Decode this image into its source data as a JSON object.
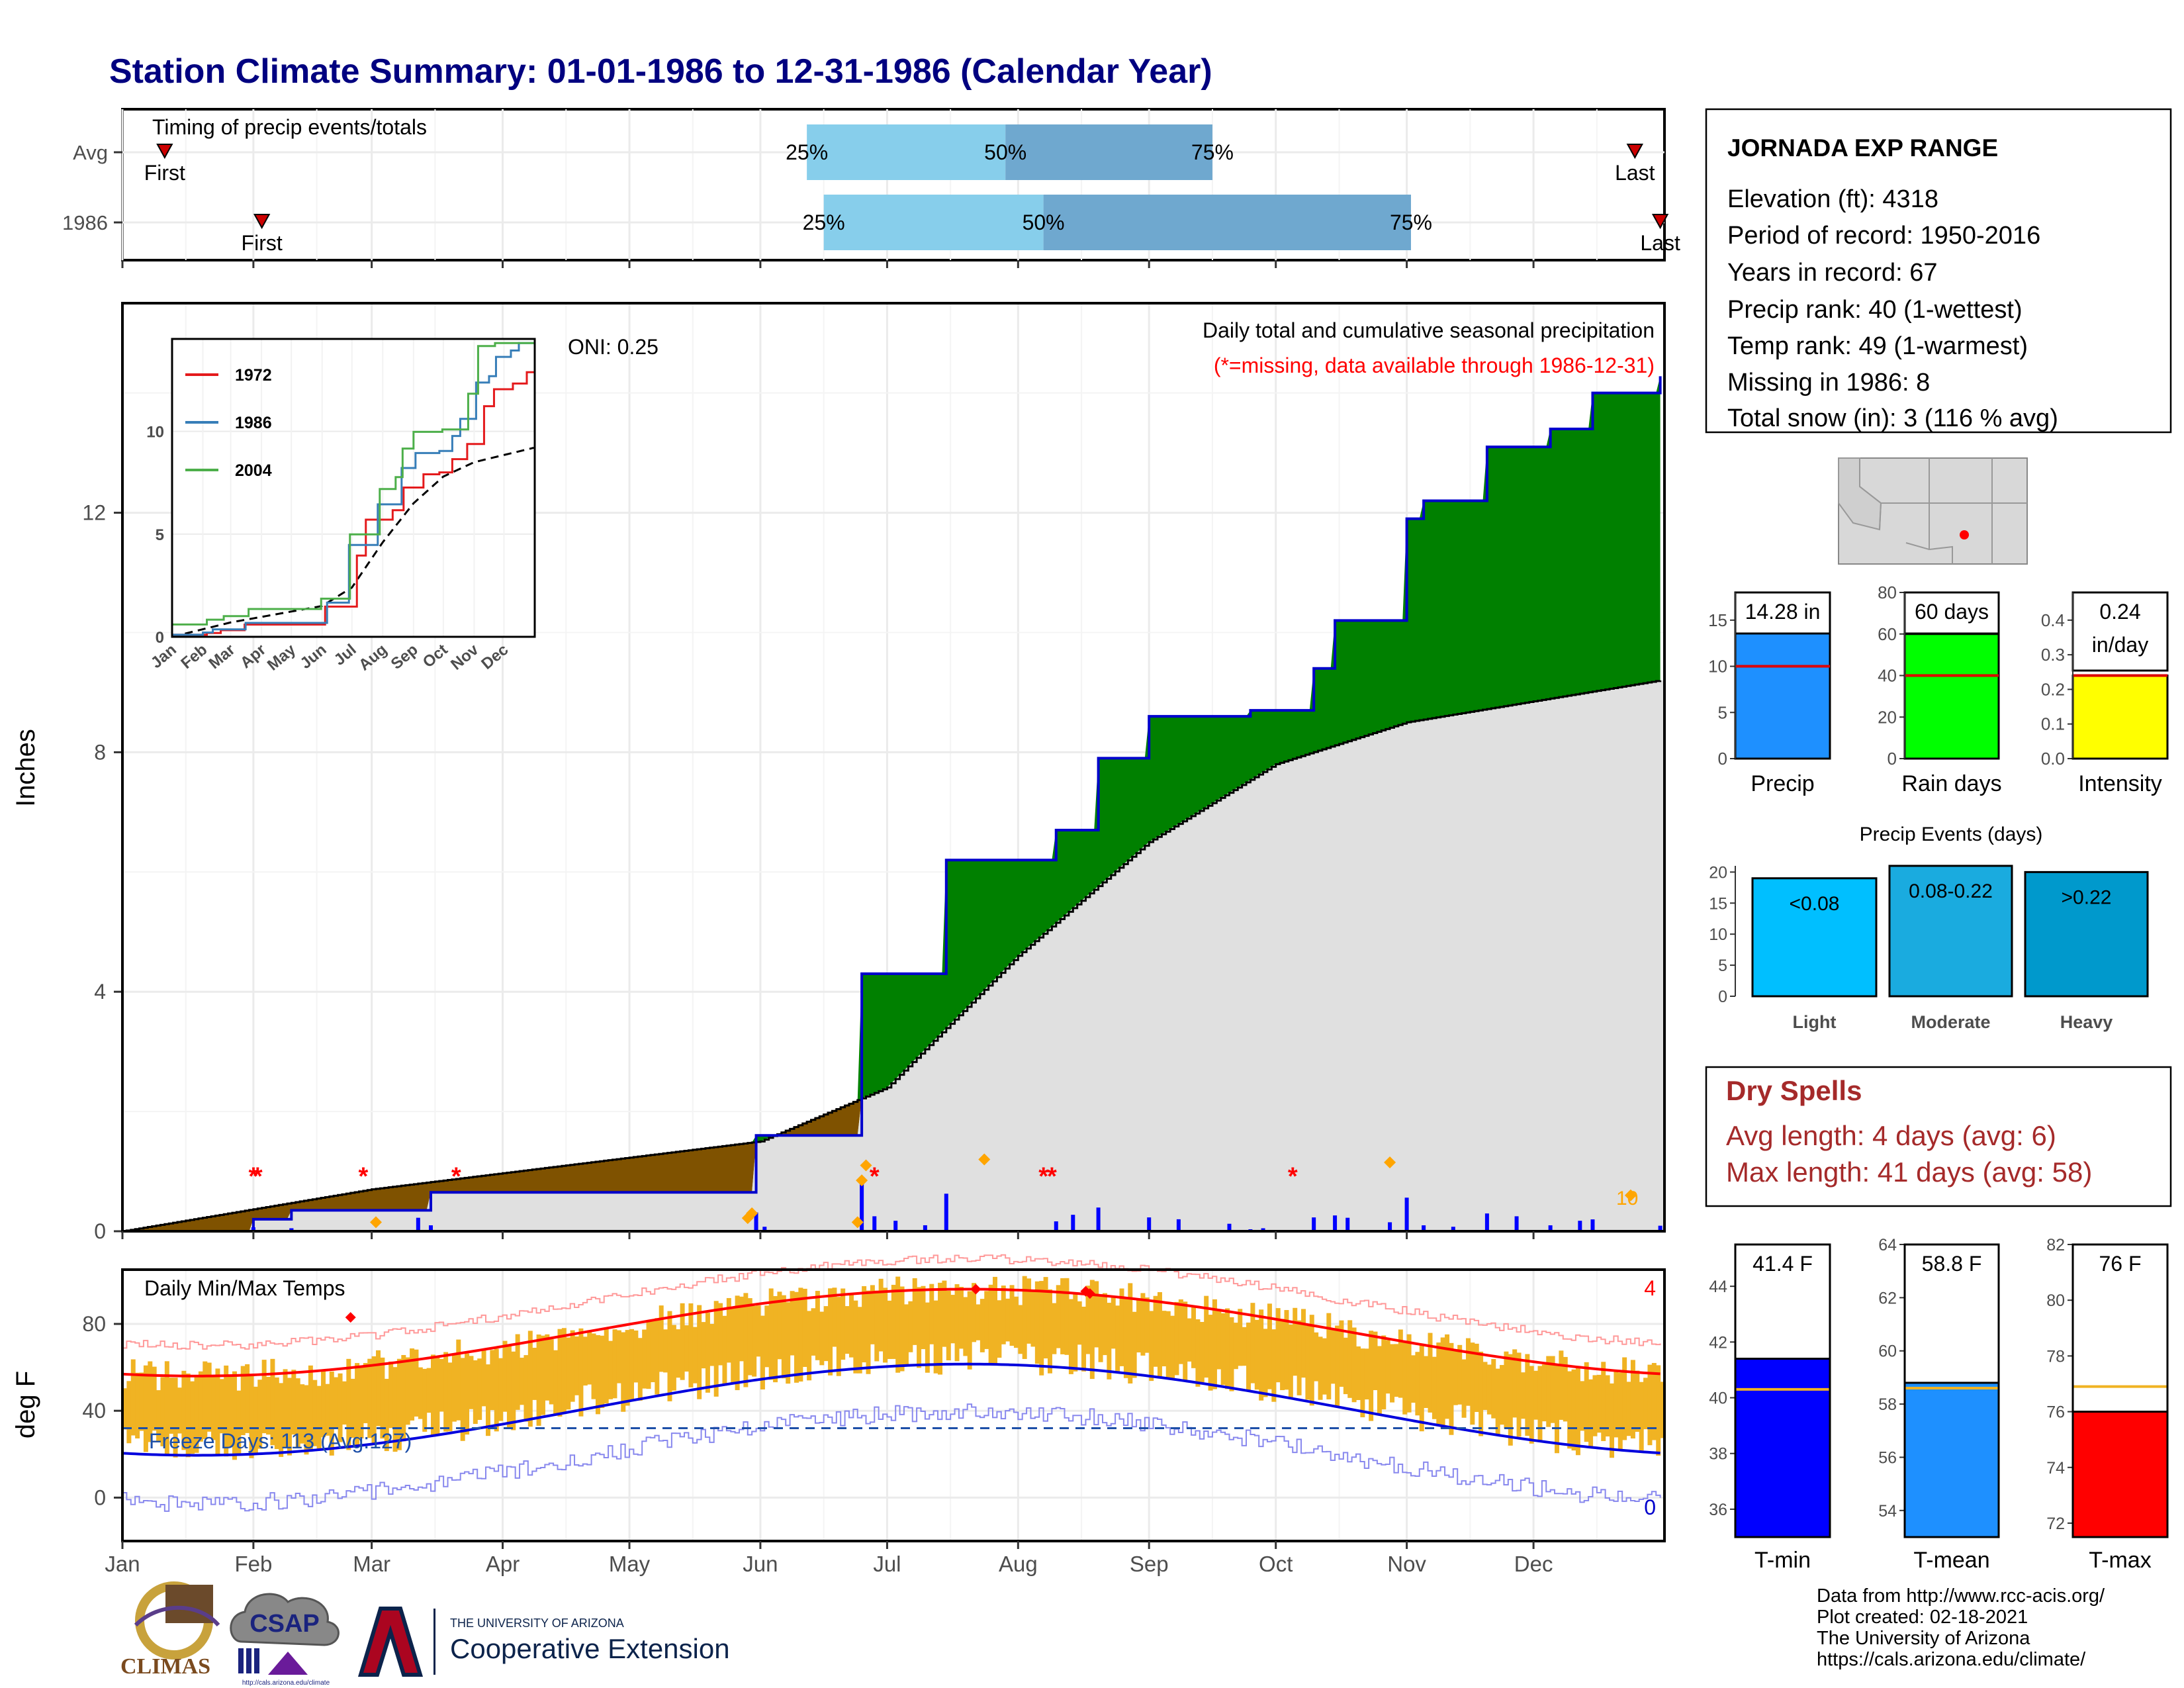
{
  "title": "Station Climate Summary: 01-01-1986 to 12-31-1986 (Calendar Year)",
  "timing": {
    "title": "Timing of precip events/totals",
    "rows": [
      {
        "label": "Avg",
        "first_day": 10,
        "last_day": 358,
        "q25": 162,
        "q50": 209,
        "q75": 258
      },
      {
        "label": "1986",
        "first_day": 33,
        "last_day": 364,
        "q25": 166,
        "q50": 218,
        "q75": 305
      }
    ],
    "first_label": "First",
    "last_label": "Last",
    "q_labels": [
      "25%",
      "50%",
      "75%"
    ],
    "colors": {
      "q_light": "#87ceeb",
      "q_dark": "#6fa8cf",
      "marker": "#cc0000"
    }
  },
  "precip_panel": {
    "ylabel": "Inches",
    "yticks": [
      0,
      4,
      8,
      12
    ],
    "ylim": [
      0,
      15.5
    ],
    "header_line1": "Daily total and cumulative seasonal precipitation",
    "header_line2": "(*=missing, data available through 1986-12-31)",
    "oni_label": "ONI: 0.25",
    "max_daily_label": "10",
    "colors": {
      "above": "#008000",
      "below": "#7f5200",
      "avg_fill": "#e0e0e0",
      "line": "#0000cc",
      "bars": "#0000ff",
      "missing": "#ff0000",
      "event_marker": "#ffa500"
    }
  },
  "inset": {
    "yticks": [
      0,
      5,
      10
    ],
    "months": [
      "Jan",
      "Feb",
      "Mar",
      "Apr",
      "May",
      "Jun",
      "Jul",
      "Aug",
      "Sep",
      "Oct",
      "Nov",
      "Dec"
    ],
    "legend": [
      {
        "name": "1972",
        "color": "#e41a1c"
      },
      {
        "name": "1986",
        "color": "#377eb8"
      },
      {
        "name": "2004",
        "color": "#4daf4a"
      }
    ]
  },
  "temp_panel": {
    "ylabel": "deg F",
    "title": "Daily Min/Max Temps",
    "yticks": [
      0,
      40,
      80
    ],
    "ylim": [
      -20,
      105
    ],
    "freeze_label": "Freeze Days: 113 (Avg:127)",
    "freeze_line": 32,
    "count_max": "4",
    "count_min": "0",
    "colors": {
      "bars": "#f0b323",
      "max_avg": "#ff0000",
      "min_avg": "#0000dd",
      "record_max": "#ff9999",
      "record_min": "#8888ee"
    }
  },
  "months": [
    "Jan",
    "Feb",
    "Mar",
    "Apr",
    "May",
    "Jun",
    "Jul",
    "Aug",
    "Sep",
    "Oct",
    "Nov",
    "Dec"
  ],
  "station": {
    "name": "JORNADA EXP RANGE",
    "lines": [
      "Elevation (ft): 4318",
      "Period of record: 1950-2016",
      "Years in record: 67",
      "Precip rank: 40 (1-wettest)",
      "Temp rank: 49 (1-warmest)",
      "Missing in 1986: 8",
      "Total snow (in): 3 (116 % avg)"
    ]
  },
  "chart_data": [
    {
      "type": "line",
      "title": "Daily total and cumulative seasonal precipitation",
      "ylabel": "Inches",
      "ylim": [
        0,
        15.5
      ],
      "series": [
        {
          "name": "1986",
          "x": [
            "1986-01-01",
            "1986-02-01",
            "1986-02-10",
            "1986-03-15",
            "1986-05-31",
            "1986-06-25",
            "1986-07-15",
            "1986-07-20",
            "1986-08-10",
            "1986-08-20",
            "1986-09-01",
            "1986-09-25",
            "1986-10-10",
            "1986-10-15",
            "1986-11-01",
            "1986-11-05",
            "1986-11-20",
            "1986-12-05",
            "1986-12-15",
            "1986-12-31"
          ],
          "y": [
            0,
            0.2,
            0.35,
            0.65,
            1.6,
            4.3,
            6.2,
            6.2,
            6.7,
            7.9,
            8.6,
            8.7,
            9.4,
            10.2,
            11.9,
            12.2,
            13.1,
            13.4,
            14.0,
            14.28
          ]
        },
        {
          "name": "Avg",
          "x": [
            "1986-01-01",
            "1986-03-01",
            "1986-06-01",
            "1986-07-01",
            "1986-08-01",
            "1986-09-01",
            "1986-10-01",
            "1986-11-01",
            "1986-12-31"
          ],
          "y": [
            0,
            0.7,
            1.5,
            2.4,
            4.6,
            6.5,
            7.8,
            8.5,
            9.2
          ]
        }
      ]
    },
    {
      "type": "bar",
      "title": "",
      "categories": [
        "Precip",
        "Rain days",
        "Intensity"
      ],
      "values": [
        14.28,
        60,
        0.24
      ],
      "labels": [
        "14.28 in",
        "60 days",
        "0.24 in/day"
      ],
      "averages": [
        10,
        40,
        0.24
      ],
      "ylims": [
        [
          0,
          18
        ],
        [
          0,
          80
        ],
        [
          0,
          0.48
        ]
      ],
      "yticks": [
        [
          0,
          5,
          10,
          15
        ],
        [
          0,
          20,
          40,
          60,
          80
        ],
        [
          0.0,
          0.1,
          0.2,
          0.3,
          0.4
        ]
      ],
      "tick_labels": [
        [
          "0",
          "5",
          "10",
          "15"
        ],
        [
          "0",
          "20",
          "40",
          "60",
          "80"
        ],
        [
          "0.0",
          "0.1",
          "0.2",
          "0.3",
          "0.4"
        ]
      ],
      "colors": [
        "#1e90ff",
        "#00ff00",
        "#ffff00"
      ]
    },
    {
      "type": "bar",
      "title": "Precip Events (days)",
      "categories": [
        "Light",
        "Moderate",
        "Heavy"
      ],
      "bar_labels": [
        "<0.08",
        "0.08-0.22",
        ">0.22"
      ],
      "values": [
        19,
        21,
        20
      ],
      "ylim": [
        0,
        21
      ],
      "yticks": [
        0,
        5,
        10,
        15,
        20
      ],
      "colors": [
        "#00bfff",
        "#1aabdf",
        "#0099cc"
      ]
    },
    {
      "type": "bar",
      "title": "",
      "categories": [
        "T-min",
        "T-mean",
        "T-max"
      ],
      "values": [
        41.4,
        58.8,
        76
      ],
      "labels": [
        "41.4 F",
        "58.8 F",
        "76 F"
      ],
      "averages": [
        40.3,
        58.6,
        76.9
      ],
      "ylims": [
        [
          35,
          45.5
        ],
        [
          53,
          64
        ],
        [
          71.5,
          82
        ]
      ],
      "yticks": [
        [
          36,
          38,
          40,
          42,
          44
        ],
        [
          54,
          56,
          58,
          60,
          62,
          64
        ],
        [
          72,
          74,
          76,
          78,
          80,
          82
        ]
      ],
      "colors": [
        "#0000ff",
        "#1e90ff",
        "#ff0000"
      ]
    }
  ],
  "dry_spells": {
    "title": "Dry Spells",
    "lines": [
      "Avg length: 4 days (avg: 6)",
      "Max length: 41 days (avg: 58)"
    ]
  },
  "logos": {
    "climas": "CLIMAS",
    "csap": "CSAP",
    "csap_url": "http://cals.arizona.edu/climate",
    "ua_small": "THE UNIVERSITY OF ARIZONA",
    "ua_big": "Cooperative Extension"
  },
  "credits": [
    "Data from http://www.rcc-acis.org/",
    "Plot created: 02-18-2021",
    "The University of Arizona",
    "https://cals.arizona.edu/climate/"
  ]
}
